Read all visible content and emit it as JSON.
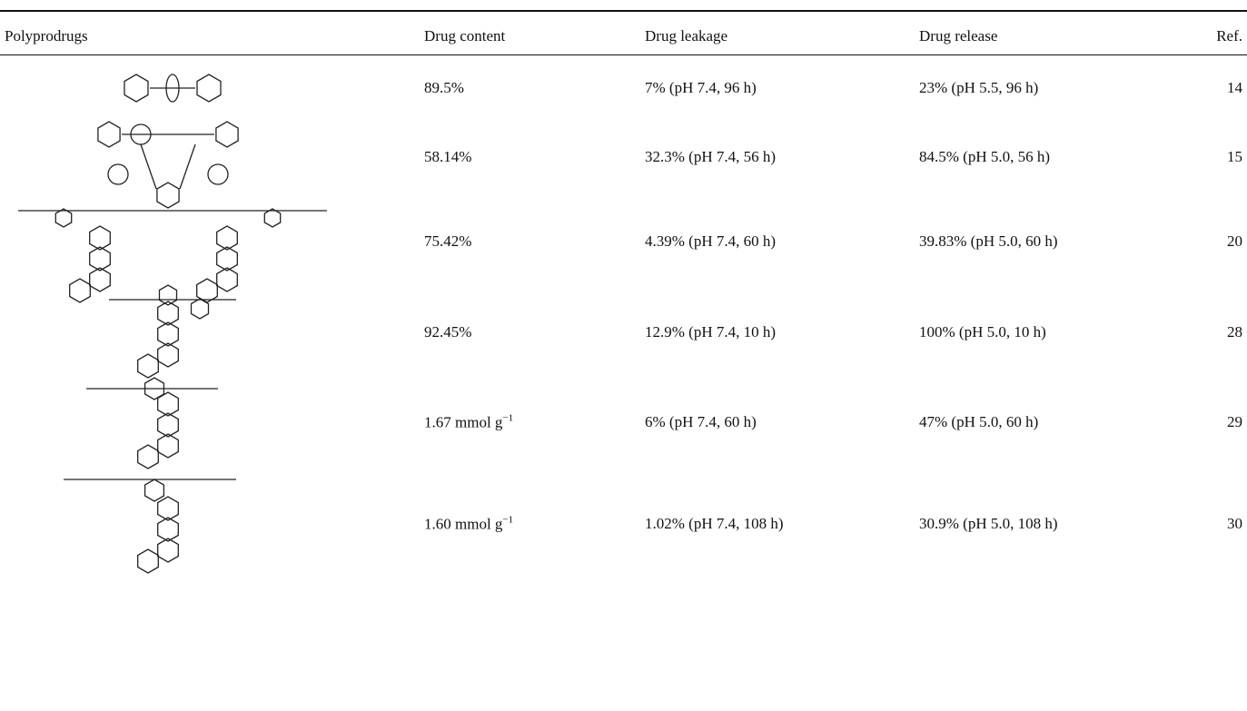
{
  "table": {
    "header": [
      "Polyprodrugs",
      "Drug content",
      "Drug leakage",
      "Drug release",
      "Ref."
    ],
    "rows": [
      [
        "89.5%",
        "7% (pH 7.4, 96 h)",
        "23% (pH 5.5, 96 h)",
        "14"
      ],
      [
        "58.14%",
        "32.3% (pH 7.4, 56 h)",
        "84.5% (pH 5.0, 56 h)",
        "15"
      ],
      [
        "75.42%",
        "4.39% (pH 7.4, 60 h)",
        "39.83% (pH 5.0, 60 h)",
        "20"
      ],
      [
        "92.45%",
        "12.9% (pH 7.4, 10 h)",
        "100% (pH 5.0, 10 h)",
        "28"
      ],
      [
        {
          "text": "1.67 mmol g",
          "sup": "−1"
        },
        "6% (pH 7.4, 60 h)",
        "47% (pH 5.0, 60 h)",
        "29"
      ],
      [
        {
          "text": "1.60 mmol g",
          "sup": "−1"
        },
        "1.02% (pH 7.4, 108 h)",
        "30.9% (pH 5.0, 108 h)",
        "30"
      ]
    ]
  }
}
